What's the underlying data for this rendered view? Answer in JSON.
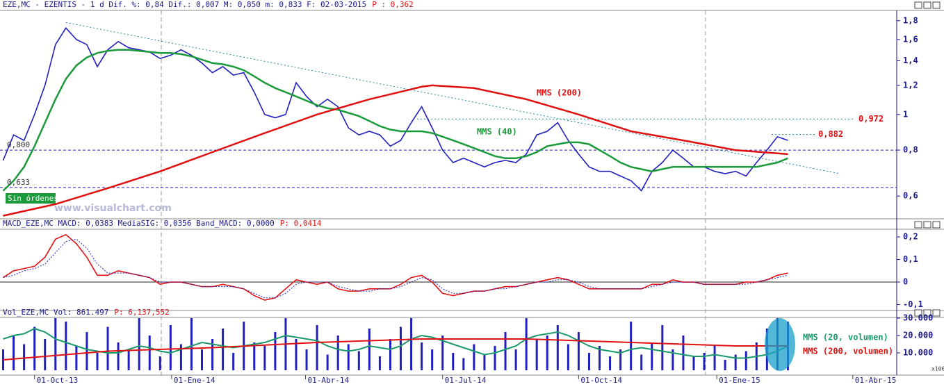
{
  "watermark": "www.visualchart.com",
  "order_status": "Sin órdenes",
  "chart_data": [
    {
      "type": "line",
      "title": "EZE,MC - EZENTIS -  1 d Dif. %: 0,84 Dif.: 0,007 M: 0,850 m: 0,833 F: 02-03-2015",
      "title_value": "P : 0,362",
      "log_scale": true,
      "ylim": [
        0.52,
        1.92
      ],
      "yticks": [
        {
          "value": 0.6,
          "label": "0,6"
        },
        {
          "value": 0.8,
          "label": "0,8"
        },
        1,
        {
          "value": 1.2,
          "label": "1,2"
        },
        {
          "value": 1.4,
          "label": "1,4"
        },
        {
          "value": 1.6,
          "label": "1,6"
        },
        {
          "value": 1.8,
          "label": "1,8"
        }
      ],
      "xlim": [
        -0.3,
        85.4
      ],
      "x": [
        0,
        1,
        2,
        3,
        4,
        5,
        6,
        7,
        8,
        9,
        10,
        11,
        12,
        13,
        14,
        15,
        16,
        17,
        18,
        19,
        20,
        21,
        22,
        23,
        24,
        25,
        26,
        27,
        28,
        29,
        30,
        31,
        32,
        33,
        34,
        35,
        36,
        37,
        38,
        39,
        40,
        41,
        42,
        43,
        44,
        45,
        46,
        47,
        48,
        49,
        50,
        51,
        52,
        53,
        54,
        55,
        56,
        57,
        58,
        59,
        60,
        61,
        62,
        63,
        64,
        65,
        66,
        67,
        68,
        69,
        70,
        71,
        72,
        73,
        74,
        75
      ],
      "levels": [
        {
          "value": 0.8,
          "label": "0,800"
        },
        {
          "value": 0.633,
          "label": "0,633"
        }
      ],
      "marked_levels": [
        {
          "value": 0.972,
          "label": "0,972"
        },
        {
          "value": 0.882,
          "label": "0,882"
        }
      ],
      "trendline": {
        "x": [
          6,
          80
        ],
        "values": [
          1.78,
          0.69
        ]
      },
      "series": [
        {
          "name": "EZE,MC",
          "color": "#1f1fbf",
          "values": [
            0.75,
            0.88,
            0.85,
            1.0,
            1.2,
            1.55,
            1.72,
            1.6,
            1.55,
            1.35,
            1.5,
            1.58,
            1.52,
            1.5,
            1.48,
            1.42,
            1.45,
            1.5,
            1.45,
            1.38,
            1.3,
            1.35,
            1.28,
            1.3,
            1.15,
            1.0,
            0.98,
            1.0,
            1.22,
            1.12,
            1.05,
            1.1,
            1.05,
            0.92,
            0.88,
            0.9,
            0.88,
            0.82,
            0.85,
            0.95,
            1.05,
            0.92,
            0.8,
            0.74,
            0.76,
            0.74,
            0.72,
            0.74,
            0.75,
            0.74,
            0.78,
            0.88,
            0.9,
            0.95,
            0.85,
            0.78,
            0.72,
            0.7,
            0.7,
            0.68,
            0.66,
            0.62,
            0.7,
            0.74,
            0.8,
            0.76,
            0.72,
            0.72,
            0.7,
            0.69,
            0.7,
            0.68,
            0.74,
            0.8,
            0.87,
            0.85
          ]
        },
        {
          "name": "MMS (40)",
          "color": "#1a9a3a",
          "values": [
            0.62,
            0.66,
            0.72,
            0.82,
            0.95,
            1.1,
            1.25,
            1.36,
            1.43,
            1.47,
            1.49,
            1.5,
            1.5,
            1.49,
            1.48,
            1.47,
            1.47,
            1.46,
            1.44,
            1.41,
            1.38,
            1.37,
            1.35,
            1.32,
            1.27,
            1.22,
            1.18,
            1.15,
            1.12,
            1.09,
            1.06,
            1.04,
            1.03,
            1.01,
            0.99,
            0.96,
            0.93,
            0.91,
            0.9,
            0.9,
            0.9,
            0.89,
            0.87,
            0.85,
            0.83,
            0.81,
            0.79,
            0.77,
            0.76,
            0.76,
            0.77,
            0.79,
            0.82,
            0.83,
            0.84,
            0.84,
            0.83,
            0.8,
            0.77,
            0.74,
            0.72,
            0.71,
            0.7,
            0.71,
            0.72,
            0.72,
            0.72,
            0.72,
            0.72,
            0.72,
            0.72,
            0.72,
            0.72,
            0.73,
            0.74,
            0.76
          ]
        },
        {
          "name": "MMS (200)",
          "color": "#e01010",
          "x": [
            0,
            5,
            10,
            15,
            20,
            25,
            30,
            35,
            40,
            41,
            45,
            50,
            55,
            60,
            65,
            70,
            75
          ],
          "values": [
            0.53,
            0.57,
            0.63,
            0.7,
            0.79,
            0.89,
            1.0,
            1.1,
            1.19,
            1.2,
            1.18,
            1.1,
            1.0,
            0.9,
            0.85,
            0.8,
            0.78
          ]
        }
      ]
    },
    {
      "type": "line",
      "title": "MACD_EZE,MC MACD: 0,0383 MediaSIG: 0,0356 Band_MACD: 0,0000",
      "title_value": "P: 0,0414",
      "ylim": [
        -0.126,
        0.234
      ],
      "yticks": [
        {
          "value": -0.1,
          "label": "-0,1"
        },
        0,
        {
          "value": 0.1,
          "label": "0,1"
        },
        {
          "value": 0.2,
          "label": "0,2"
        }
      ],
      "xlim": [
        -0.3,
        85.4
      ],
      "x": [
        0,
        1,
        2,
        3,
        4,
        5,
        6,
        7,
        8,
        9,
        10,
        11,
        12,
        13,
        14,
        15,
        16,
        17,
        18,
        19,
        20,
        21,
        22,
        23,
        24,
        25,
        26,
        27,
        28,
        29,
        30,
        31,
        32,
        33,
        34,
        35,
        36,
        37,
        38,
        39,
        40,
        41,
        42,
        43,
        44,
        45,
        46,
        47,
        48,
        49,
        50,
        51,
        52,
        53,
        54,
        55,
        56,
        57,
        58,
        59,
        60,
        61,
        62,
        63,
        64,
        65,
        66,
        67,
        68,
        69,
        70,
        71,
        72,
        73,
        74,
        75
      ],
      "series": [
        {
          "name": "MACD",
          "color": "#e01010",
          "values": [
            0.02,
            0.05,
            0.06,
            0.07,
            0.11,
            0.19,
            0.21,
            0.17,
            0.11,
            0.03,
            0.03,
            0.05,
            0.04,
            0.03,
            0.02,
            -0.01,
            0.0,
            0.0,
            -0.01,
            -0.02,
            -0.02,
            -0.01,
            -0.02,
            -0.03,
            -0.06,
            -0.08,
            -0.07,
            -0.03,
            0.01,
            0.0,
            -0.01,
            0.0,
            -0.03,
            -0.04,
            -0.04,
            -0.03,
            -0.03,
            -0.03,
            -0.01,
            0.02,
            0.03,
            0.0,
            -0.05,
            -0.06,
            -0.05,
            -0.04,
            -0.04,
            -0.03,
            -0.02,
            -0.02,
            -0.01,
            0.0,
            0.01,
            0.02,
            0.01,
            -0.01,
            -0.03,
            -0.03,
            -0.03,
            -0.03,
            -0.03,
            -0.03,
            -0.01,
            -0.01,
            0.01,
            0.0,
            0.0,
            -0.01,
            -0.01,
            -0.01,
            -0.01,
            0.0,
            0.0,
            0.01,
            0.03,
            0.04
          ]
        },
        {
          "name": "MediaSIG",
          "color": "#1f1fbf",
          "dotted": true,
          "values": [
            0.02,
            0.03,
            0.05,
            0.06,
            0.08,
            0.13,
            0.18,
            0.19,
            0.15,
            0.08,
            0.04,
            0.04,
            0.04,
            0.03,
            0.02,
            0.0,
            0.0,
            0.0,
            -0.01,
            -0.02,
            -0.02,
            -0.02,
            -0.02,
            -0.03,
            -0.05,
            -0.07,
            -0.07,
            -0.05,
            -0.01,
            0.0,
            0.0,
            0.0,
            -0.02,
            -0.03,
            -0.04,
            -0.04,
            -0.03,
            -0.03,
            -0.02,
            0.0,
            0.02,
            0.01,
            -0.03,
            -0.05,
            -0.05,
            -0.04,
            -0.04,
            -0.03,
            -0.03,
            -0.02,
            -0.01,
            0.0,
            0.0,
            0.01,
            0.01,
            0.0,
            -0.02,
            -0.03,
            -0.03,
            -0.03,
            -0.03,
            -0.03,
            -0.02,
            -0.01,
            0.0,
            0.0,
            0.0,
            -0.01,
            -0.01,
            -0.01,
            -0.01,
            -0.01,
            0.0,
            0.01,
            0.02,
            0.03
          ]
        }
      ]
    },
    {
      "type": "bar",
      "title": "Vol_EZE,MC Vol: 861.497",
      "title_value": "P: 6,137,552",
      "unit": "x100",
      "ylim": [
        -2800,
        30400
      ],
      "yticks": [
        {
          "value": 10000,
          "label": "10.000"
        },
        {
          "value": 20000,
          "label": "20.000"
        },
        {
          "value": 30000,
          "label": "30.000"
        }
      ],
      "xlim": [
        -0.3,
        85.4
      ],
      "xticks": [
        {
          "value": 3,
          "label": "01-Oct-13"
        },
        {
          "value": 16.1,
          "label": "01-Ene-14"
        },
        {
          "value": 28.9,
          "label": "01-Abr-14"
        },
        {
          "value": 42,
          "label": "01-Jul-14"
        },
        {
          "value": 55,
          "label": "01-Oct-14"
        },
        {
          "value": 68.2,
          "label": "01-Ene-15"
        },
        {
          "value": 81.2,
          "label": "01-Abr-15"
        }
      ],
      "x": [
        0,
        1,
        2,
        3,
        4,
        5,
        6,
        7,
        8,
        9,
        10,
        11,
        12,
        13,
        14,
        15,
        16,
        17,
        18,
        19,
        20,
        21,
        22,
        23,
        24,
        25,
        26,
        27,
        28,
        29,
        30,
        31,
        32,
        33,
        34,
        35,
        36,
        37,
        38,
        39,
        40,
        41,
        42,
        43,
        44,
        45,
        46,
        47,
        48,
        49,
        50,
        51,
        52,
        53,
        54,
        55,
        56,
        57,
        58,
        59,
        60,
        61,
        62,
        63,
        64,
        65,
        66,
        67,
        68,
        69,
        70,
        71,
        72,
        73,
        74,
        75
      ],
      "bar_color": "#1f1fbf",
      "values": [
        12000,
        20000,
        15000,
        25000,
        18000,
        30000,
        28000,
        14000,
        22000,
        10000,
        25000,
        16000,
        12000,
        30000,
        20000,
        8000,
        26000,
        15000,
        30000,
        12000,
        18000,
        24000,
        10000,
        28000,
        16000,
        14000,
        22000,
        30000,
        18000,
        12000,
        26000,
        9000,
        20000,
        15000,
        11000,
        24000,
        8000,
        18000,
        25000,
        30000,
        16000,
        12000,
        20000,
        10000,
        7000,
        15000,
        9000,
        14000,
        22000,
        12000,
        30000,
        18000,
        20000,
        26000,
        15000,
        22000,
        10000,
        14000,
        8000,
        12000,
        28000,
        9000,
        16000,
        26000,
        12000,
        20000,
        8000,
        10000,
        14000,
        6000,
        9000,
        11000,
        16000,
        24000,
        30000,
        28000
      ],
      "series": [
        {
          "name": "MMS (20, volumen)",
          "color": "#1a9a6a",
          "values": [
            18000,
            20000,
            21000,
            24000,
            22000,
            18000,
            16000,
            14000,
            12000,
            11000,
            10000,
            10000,
            12000,
            14000,
            13000,
            11000,
            10000,
            12000,
            14000,
            16000,
            15000,
            14000,
            13000,
            14000,
            15000,
            16000,
            18000,
            20000,
            19000,
            18000,
            17000,
            14000,
            12000,
            11000,
            12000,
            14000,
            13000,
            12000,
            14000,
            18000,
            20000,
            19000,
            17000,
            15000,
            13000,
            11000,
            9000,
            10000,
            12000,
            14000,
            18000,
            20000,
            21000,
            22000,
            20000,
            17000,
            14000,
            12000,
            11000,
            10000,
            12000,
            13000,
            12000,
            11000,
            10000,
            9000,
            8000,
            8000,
            9000,
            8000,
            7000,
            7000,
            8000,
            9000,
            11000,
            14000
          ]
        },
        {
          "name": "MMS (200, volumen)",
          "color": "#e01010",
          "x": [
            0,
            10,
            20,
            30,
            40,
            50,
            60,
            70,
            75
          ],
          "values": [
            6000,
            11000,
            13000,
            16000,
            18000,
            18000,
            16000,
            14000,
            14000
          ]
        }
      ]
    }
  ]
}
